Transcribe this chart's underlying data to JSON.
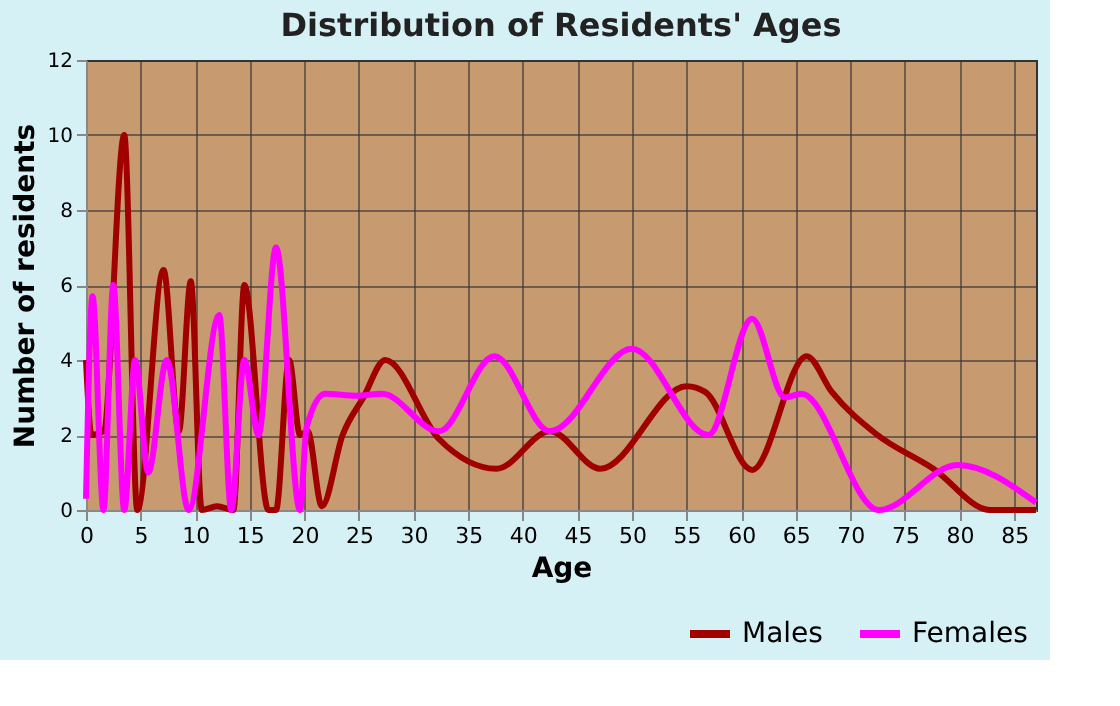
{
  "chart_data": {
    "type": "line",
    "title": "Distribution of Residents' Ages",
    "xlabel": "Age",
    "ylabel": "Number of residents",
    "xlim": [
      0,
      87
    ],
    "xticks": [
      0,
      5,
      10,
      15,
      20,
      25,
      30,
      35,
      40,
      45,
      50,
      55,
      60,
      65,
      70,
      75,
      80,
      85
    ],
    "ylim": [
      0,
      12
    ],
    "yticks": [
      0,
      2,
      4,
      6,
      8,
      10,
      12
    ],
    "grid": true,
    "legend": "bottom right",
    "series": [
      {
        "name": "Males",
        "color": "#a00000",
        "x": [
          0,
          0.5,
          1.6,
          3.5,
          4.7,
          7.1,
          8.5,
          9.6,
          10.6,
          12,
          13.5,
          14.5,
          16.7,
          17.4,
          18.6,
          19.6,
          20.3,
          21.6,
          23.5,
          25.4,
          27.4,
          32.3,
          37.6,
          42.5,
          47.1,
          55,
          56.7,
          61,
          66,
          68.3,
          72.3,
          77.6,
          82.8,
          87
        ],
        "values": [
          4,
          2,
          2.1,
          10,
          0,
          6.4,
          2.1,
          6.1,
          0,
          0.1,
          0,
          6,
          0,
          0,
          4,
          2,
          2.1,
          0.1,
          2,
          3,
          4,
          1.9,
          1.1,
          2.1,
          1.1,
          3.3,
          3.15,
          1.07,
          4.1,
          3.15,
          2.04,
          1.1,
          0,
          0
        ]
      },
      {
        "name": "Females",
        "color": "#ff00ff",
        "x": [
          0,
          0.6,
          1.6,
          2.5,
          3.5,
          4.5,
          5.7,
          7.4,
          9.4,
          12.2,
          13.3,
          14.5,
          15.8,
          17.4,
          19.6,
          20.2,
          21.9,
          24.8,
          27.1,
          32.3,
          37.4,
          42.5,
          50,
          57,
          61,
          64,
          65.5,
          72.6,
          79.8,
          87
        ],
        "values": [
          0.3,
          5.7,
          0,
          6,
          0,
          4,
          1,
          4,
          0,
          5.2,
          0,
          4,
          2,
          7,
          0,
          2.2,
          3.1,
          3.05,
          3.1,
          2.1,
          4.1,
          2.1,
          4.3,
          2,
          5.1,
          3,
          3.1,
          0,
          1.2,
          0.2
        ]
      }
    ]
  }
}
